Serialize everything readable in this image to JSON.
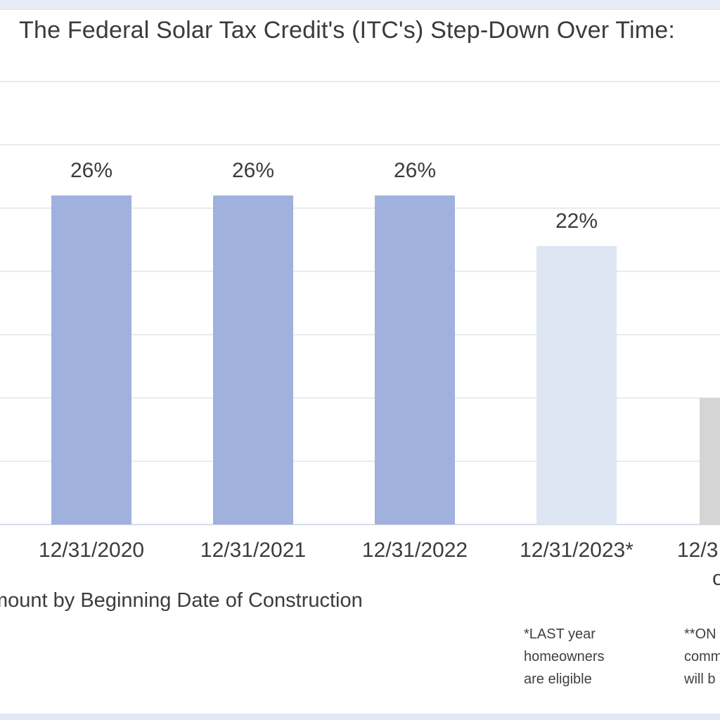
{
  "page": {
    "top_edge_color": "#e8ecf6",
    "bottom_edge_color": "#e3e9f4",
    "background": "#ffffff"
  },
  "chart_data": {
    "type": "bar",
    "title": "The Federal Solar Tax Credit's (ITC's) Step-Down Over Time:",
    "categories": [
      "12/31/2020",
      "12/31/2021",
      "12/31/2022",
      "12/31/2023*",
      "12/3"
    ],
    "values": [
      26,
      26,
      26,
      22,
      10
    ],
    "data_labels": [
      "26%",
      "26%",
      "26%",
      "22%",
      ""
    ],
    "bar_colors": [
      "#a0b1de",
      "#a0b1de",
      "#a0b1de",
      "#dee5f3",
      "#d5d5d5"
    ],
    "xlabel_visible_fragment": "mount by Beginning Date of Construction",
    "category5_line2_fragment": "o",
    "ylim": [
      0,
      35
    ],
    "gridline_step_pct": 5,
    "grid": "horizontal",
    "legend_position": "none",
    "y_axis_labels_visible": false
  },
  "footnotes": {
    "left": [
      "*LAST year",
      "homeowners",
      "are eligible"
    ],
    "right": [
      "**ON",
      "comm",
      "will b"
    ]
  },
  "colors": {
    "gridline": "#e7ebf2",
    "axis_line": "#d8dde8",
    "text": "#3c3c3c"
  }
}
